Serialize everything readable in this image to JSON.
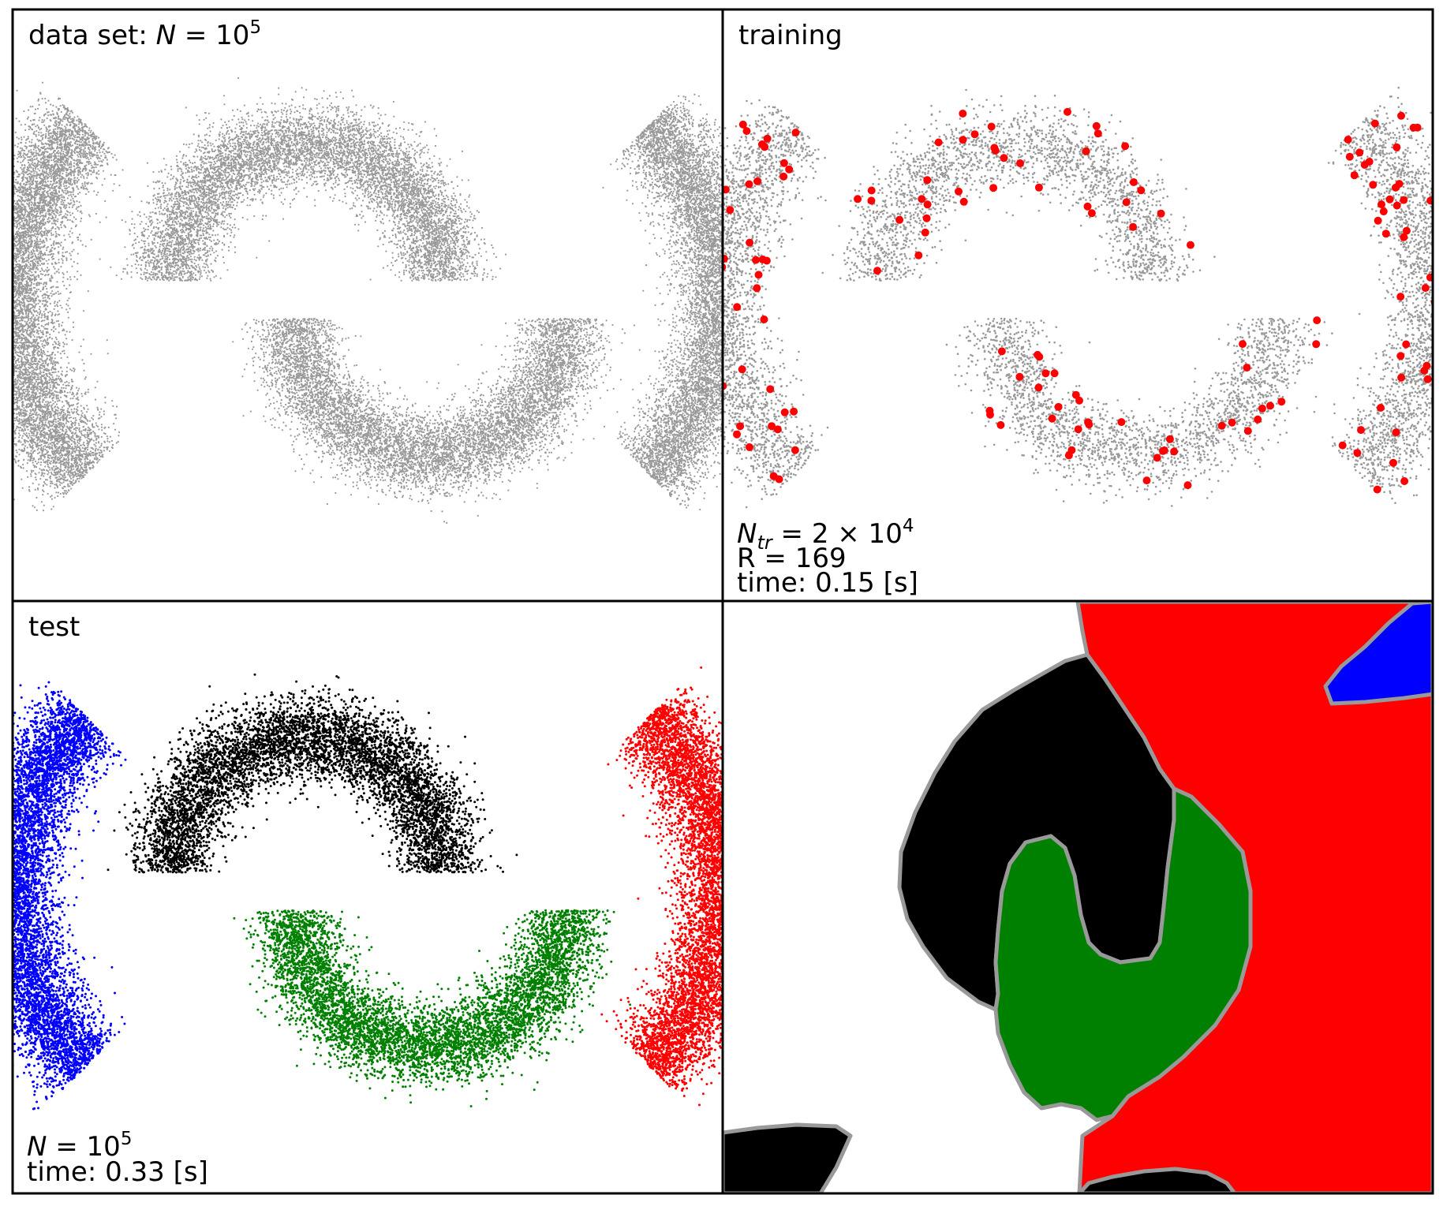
{
  "chart_data": [
    {
      "type": "scatter",
      "panel": "top-left",
      "annotation": {
        "prefix": "data set: ",
        "symbol": "N",
        "mid": " = 10",
        "sup": "5"
      },
      "color": "#999999",
      "series": [
        {
          "kind": "arc",
          "cx": -0.45,
          "cy": 0.0,
          "r": 1.05,
          "a0": 135,
          "a1": 225,
          "n": 9000,
          "spread": 0.09
        },
        {
          "kind": "arc",
          "cx": 0.45,
          "cy": 0.0,
          "r": 1.05,
          "a0": -45,
          "a1": 45,
          "n": 9000,
          "spread": 0.09
        },
        {
          "kind": "arc",
          "cx": -0.26,
          "cy": 0.08,
          "r": 0.58,
          "a0": 0,
          "a1": 180,
          "n": 8000,
          "spread": 0.085
        },
        {
          "kind": "arc",
          "cx": 0.26,
          "cy": -0.08,
          "r": 0.58,
          "a0": 180,
          "a1": 360,
          "n": 8000,
          "spread": 0.085
        }
      ]
    },
    {
      "type": "scatter",
      "panel": "top-right",
      "annotation_title": "training",
      "annotation_lines": [
        {
          "symbol": "N",
          "sub": "tr",
          "mid": " = 2 × 10",
          "sup": "4"
        },
        {
          "text": "R = 169"
        },
        {
          "text": "time: 0.15 [s]"
        }
      ],
      "color": "#999999",
      "center_color": "#ff0000",
      "n_centers": 169,
      "series": [
        {
          "kind": "arc",
          "cx": -0.45,
          "cy": 0.0,
          "r": 1.05,
          "a0": 135,
          "a1": 225,
          "n": 2400,
          "spread": 0.09
        },
        {
          "kind": "arc",
          "cx": 0.45,
          "cy": 0.0,
          "r": 1.05,
          "a0": -45,
          "a1": 45,
          "n": 2400,
          "spread": 0.09
        },
        {
          "kind": "arc",
          "cx": -0.26,
          "cy": 0.08,
          "r": 0.58,
          "a0": 0,
          "a1": 180,
          "n": 2200,
          "spread": 0.085
        },
        {
          "kind": "arc",
          "cx": 0.26,
          "cy": -0.08,
          "r": 0.58,
          "a0": 180,
          "a1": 360,
          "n": 2200,
          "spread": 0.085
        }
      ]
    },
    {
      "type": "scatter",
      "panel": "bottom-left",
      "annotation_title": "test",
      "annotation_lines": [
        {
          "symbol": "N",
          "mid": " = 10",
          "sup": "5"
        },
        {
          "text": "time: 0.33 [s]"
        }
      ],
      "series": [
        {
          "kind": "arc",
          "color": "#0000ff",
          "cx": -0.45,
          "cy": 0.0,
          "r": 1.05,
          "a0": 135,
          "a1": 225,
          "n": 7000,
          "spread": 0.09
        },
        {
          "kind": "arc",
          "color": "#ff0000",
          "cx": 0.45,
          "cy": 0.0,
          "r": 1.05,
          "a0": -45,
          "a1": 45,
          "n": 7000,
          "spread": 0.09
        },
        {
          "kind": "arc",
          "color": "#000000",
          "cx": -0.26,
          "cy": 0.08,
          "r": 0.58,
          "a0": 0,
          "a1": 180,
          "n": 6000,
          "spread": 0.085
        },
        {
          "kind": "arc",
          "color": "#008000",
          "cx": 0.26,
          "cy": -0.08,
          "r": 0.58,
          "a0": 180,
          "a1": 360,
          "n": 6000,
          "spread": 0.085
        }
      ]
    },
    {
      "type": "heatmap",
      "panel": "bottom-right",
      "classes": [
        {
          "name": "blue",
          "color": "#0000ff"
        },
        {
          "name": "red",
          "color": "#ff0000"
        },
        {
          "name": "black",
          "color": "#000000"
        },
        {
          "name": "green",
          "color": "#008000"
        }
      ],
      "boundary_color": "#999999"
    }
  ]
}
